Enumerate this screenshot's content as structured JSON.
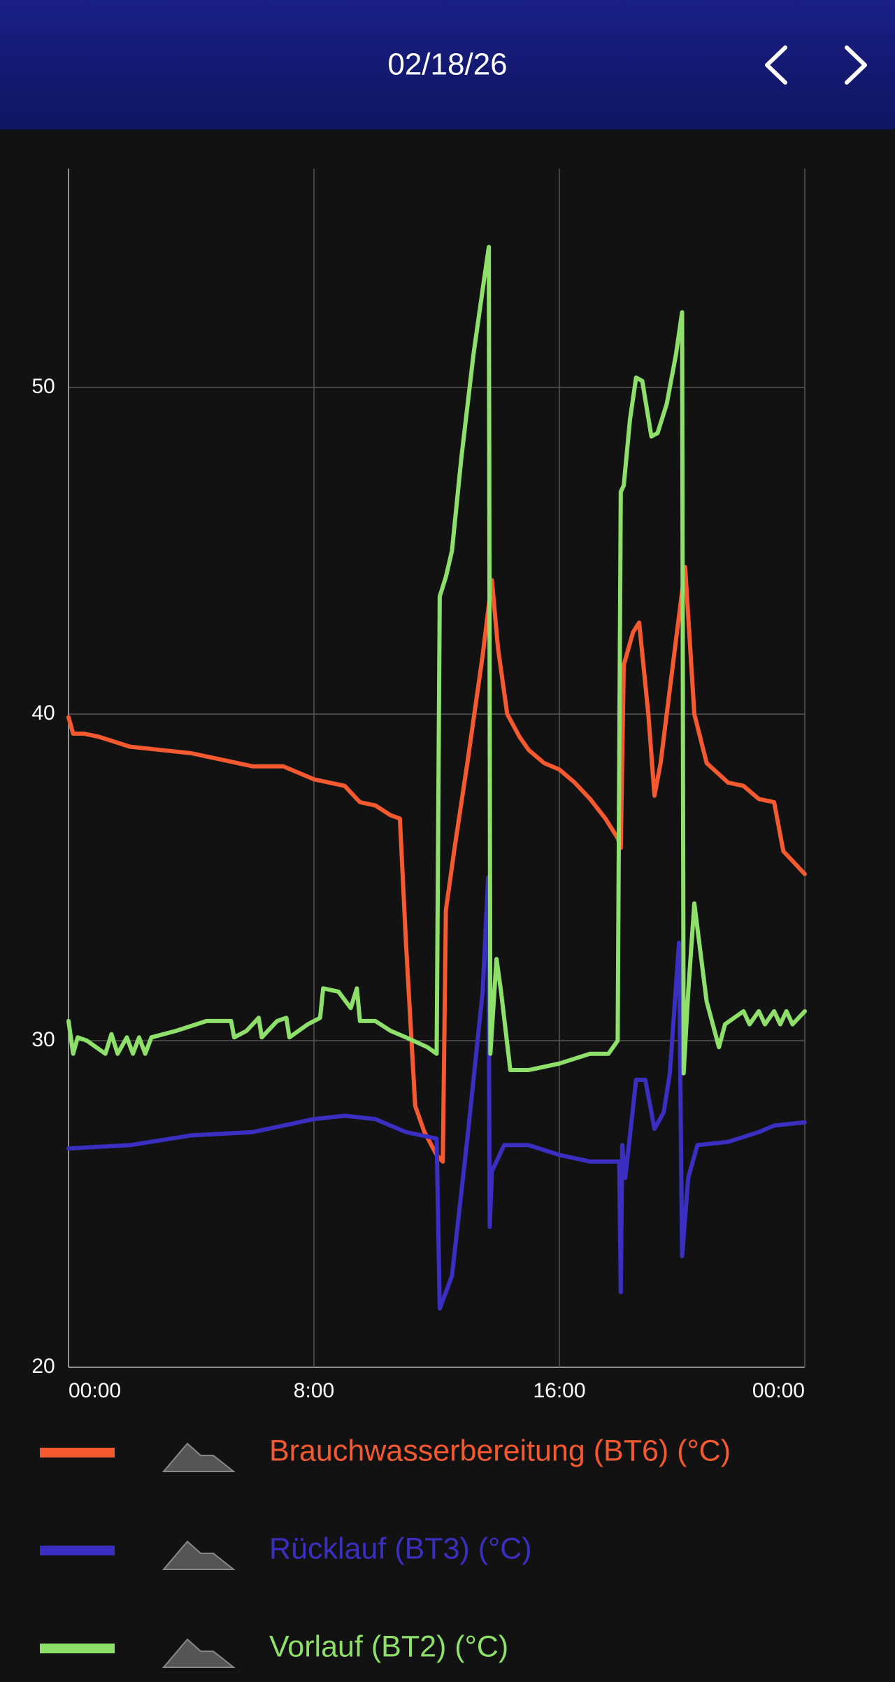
{
  "header": {
    "date": "02/18/26"
  },
  "chart_data": {
    "type": "line",
    "xlim": [
      0,
      24
    ],
    "xticks": [
      {
        "value": 0,
        "label": "00:00"
      },
      {
        "value": 8,
        "label": "8:00"
      },
      {
        "value": 16,
        "label": "16:00"
      },
      {
        "value": 24,
        "label": "00:00"
      }
    ],
    "ylim": [
      20,
      56.7
    ],
    "yticks": [
      20,
      30,
      40,
      50
    ],
    "grid": true,
    "series": [
      {
        "name": "Brauchwasserbereitung (BT6) (°C)",
        "color": "#f4592f",
        "x": [
          0,
          0.15,
          0.5,
          1,
          2,
          3,
          4,
          5,
          6,
          7,
          8,
          9,
          9.5,
          10,
          10.5,
          10.8,
          11,
          11.3,
          11.6,
          12,
          12.2,
          12.3,
          12.6,
          13,
          13.5,
          13.8,
          14,
          14.3,
          14.7,
          15,
          15.5,
          16,
          16.5,
          17,
          17.5,
          17.9,
          18,
          18.1,
          18.4,
          18.6,
          18.9,
          19.1,
          19.3,
          19.7,
          20.1,
          20.4,
          20.8,
          21.5,
          22,
          22.5,
          23,
          23.3,
          23.6,
          24
        ],
        "values": [
          39.9,
          39.4,
          39.4,
          39.3,
          39.0,
          38.9,
          38.8,
          38.6,
          38.4,
          38.4,
          38.0,
          37.8,
          37.3,
          37.2,
          36.9,
          36.8,
          33.0,
          28.0,
          27.2,
          26.5,
          26.3,
          34.0,
          36.0,
          38.5,
          41.8,
          44.1,
          42.0,
          40.0,
          39.3,
          38.9,
          38.5,
          38.3,
          37.9,
          37.4,
          36.8,
          36.2,
          35.9,
          41.5,
          42.5,
          42.8,
          40.0,
          37.5,
          38.5,
          41.5,
          44.5,
          40.0,
          38.5,
          37.9,
          37.8,
          37.4,
          37.3,
          35.8,
          35.5,
          35.1
        ]
      },
      {
        "name": "Rücklauf (BT3) (°C)",
        "color": "#3a2fc0",
        "x": [
          0,
          2,
          4,
          6,
          8,
          9,
          10,
          11,
          12,
          12.1,
          12.3,
          12.5,
          13,
          13.5,
          13.6,
          13.68,
          13.73,
          13.8,
          14.2,
          15,
          16,
          17,
          17.95,
          18,
          18.05,
          18.15,
          18.5,
          18.8,
          19.1,
          19.4,
          19.6,
          19.9,
          20,
          20.2,
          20.5,
          21.5,
          22.5,
          23,
          24
        ],
        "values": [
          26.7,
          26.8,
          27.1,
          27.2,
          27.6,
          27.7,
          27.6,
          27.2,
          27.0,
          21.8,
          22.3,
          22.8,
          27.0,
          31.5,
          33.5,
          35.0,
          24.3,
          26.0,
          26.8,
          26.8,
          26.5,
          26.3,
          26.3,
          22.3,
          26.8,
          25.8,
          28.8,
          28.8,
          27.3,
          27.8,
          29.0,
          33.0,
          23.4,
          25.8,
          26.8,
          26.9,
          27.2,
          27.4,
          27.5
        ]
      },
      {
        "name": "Vorlauf (BT2) (°C)",
        "color": "#8ee06a",
        "x": [
          0,
          0.15,
          0.3,
          0.6,
          1.2,
          1.4,
          1.6,
          1.9,
          2.1,
          2.3,
          2.5,
          2.7,
          3.5,
          4.5,
          5.3,
          5.4,
          5.8,
          6.2,
          6.3,
          6.8,
          7.1,
          7.2,
          7.8,
          8.2,
          8.3,
          8.8,
          9.2,
          9.4,
          9.5,
          10,
          10.5,
          11,
          11.7,
          12,
          12.1,
          12.3,
          12.5,
          12.8,
          13.2,
          13.5,
          13.7,
          13.75,
          13.95,
          14.1,
          14.4,
          15,
          16,
          17,
          17.6,
          17.9,
          18,
          18.1,
          18.3,
          18.5,
          18.7,
          19,
          19.2,
          19.5,
          19.8,
          20,
          20.05,
          20.2,
          20.4,
          20.8,
          21.2,
          21.4,
          22,
          22.2,
          22.5,
          22.7,
          23,
          23.2,
          23.4,
          23.6,
          24
        ],
        "values": [
          30.6,
          29.6,
          30.1,
          30.0,
          29.6,
          30.2,
          29.6,
          30.1,
          29.6,
          30.1,
          29.6,
          30.1,
          30.3,
          30.6,
          30.6,
          30.1,
          30.3,
          30.7,
          30.1,
          30.6,
          30.7,
          30.1,
          30.5,
          30.7,
          31.6,
          31.5,
          31.0,
          31.6,
          30.6,
          30.6,
          30.3,
          30.1,
          29.8,
          29.6,
          43.6,
          44.2,
          45.0,
          47.8,
          51.0,
          53.0,
          54.3,
          29.6,
          32.5,
          31.5,
          29.1,
          29.1,
          29.3,
          29.6,
          29.6,
          30.0,
          46.8,
          47.0,
          49.0,
          50.3,
          50.2,
          48.5,
          48.6,
          49.5,
          51.0,
          52.3,
          29.0,
          31.5,
          34.2,
          31.2,
          29.8,
          30.5,
          30.9,
          30.5,
          30.9,
          30.5,
          30.9,
          30.5,
          30.9,
          30.5,
          30.9
        ]
      }
    ]
  }
}
